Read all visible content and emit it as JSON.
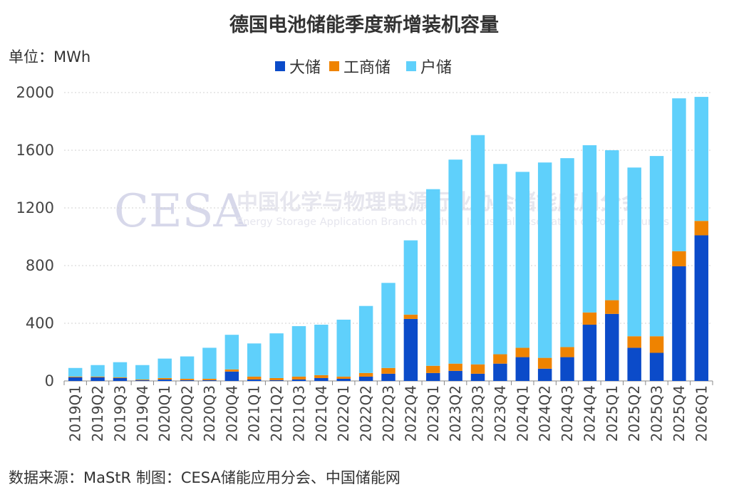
{
  "chart_data": {
    "type": "bar",
    "stacked": true,
    "title": "德国电池储能季度新增装机容量",
    "unit_label": "单位：MWh",
    "ylim": [
      0,
      2000
    ],
    "yticks": [
      0,
      400,
      800,
      1200,
      1600,
      2000
    ],
    "grid": true,
    "legend_position": "top-center",
    "categories": [
      "2019Q1",
      "2019Q2",
      "2019Q3",
      "2019Q4",
      "2020Q1",
      "2020Q2",
      "2020Q3",
      "2020Q4",
      "2021Q1",
      "2021Q2",
      "2021Q3",
      "2021Q4",
      "2022Q1",
      "2022Q2",
      "2022Q3",
      "2022Q4",
      "2023Q1",
      "2023Q2",
      "2023Q3",
      "2023Q4",
      "2024Q1",
      "2024Q2",
      "2024Q3",
      "2024Q4",
      "2025Q1",
      "2025Q2",
      "2025Q3",
      "2025Q4",
      "2026Q1"
    ],
    "series": [
      {
        "name": "大储",
        "color": "#0b4bc9",
        "values": [
          25,
          25,
          20,
          5,
          10,
          5,
          5,
          65,
          10,
          5,
          10,
          20,
          15,
          30,
          50,
          430,
          55,
          70,
          50,
          120,
          165,
          85,
          165,
          390,
          465,
          230,
          195,
          795,
          1010
        ]
      },
      {
        "name": "工商储",
        "color": "#ef8300",
        "values": [
          5,
          5,
          5,
          5,
          10,
          10,
          10,
          15,
          20,
          15,
          20,
          20,
          15,
          25,
          40,
          30,
          50,
          50,
          65,
          65,
          65,
          75,
          70,
          85,
          95,
          80,
          115,
          105,
          100
        ]
      },
      {
        "name": "户储",
        "color": "#5fd0fb",
        "values": [
          60,
          80,
          105,
          100,
          135,
          155,
          215,
          240,
          230,
          310,
          350,
          350,
          395,
          465,
          590,
          515,
          1225,
          1415,
          1590,
          1320,
          1220,
          1355,
          1310,
          1160,
          1040,
          1170,
          1250,
          1060,
          860
        ]
      }
    ],
    "footer": "数据来源：MaStR  制图：CESA储能应用分会、中国储能网",
    "watermark": {
      "logo": "CESA",
      "name_cn": "中国化学与物理电源行业协会储能应用分会",
      "name_en": "Energy Storage Application Branch of China Industrial Association of Power Sources"
    }
  }
}
